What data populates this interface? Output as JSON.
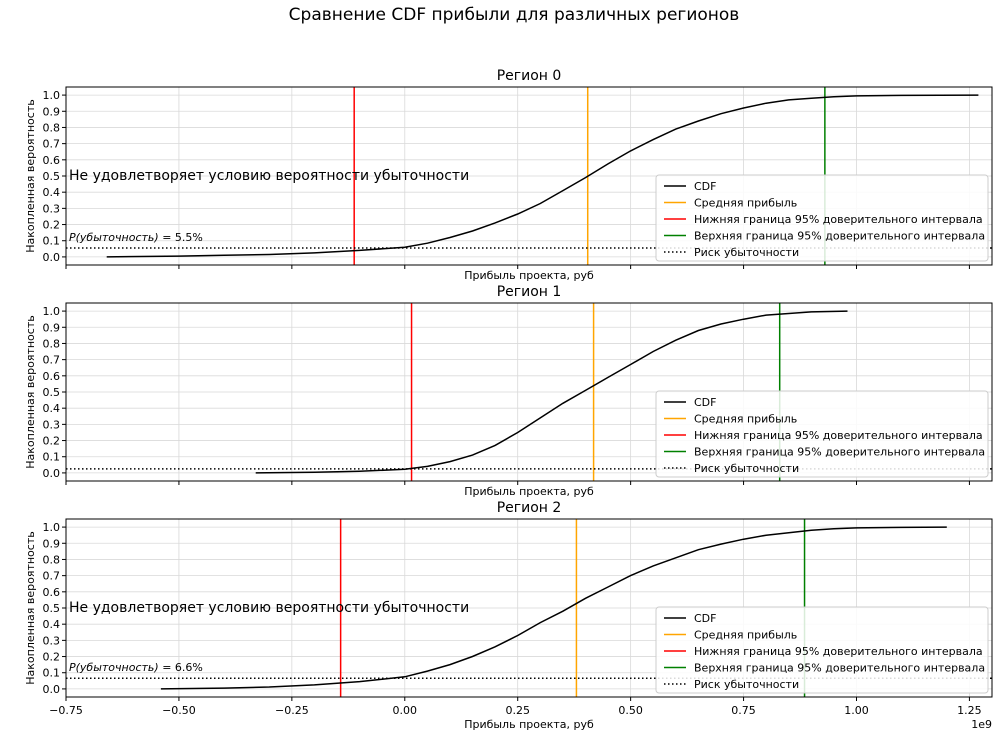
{
  "figure": {
    "title": "Сравнение CDF прибыли для различных регионов",
    "x_offset_text": "1e9"
  },
  "legend_labels": {
    "cdf": "CDF",
    "mean": "Средняя прибыль",
    "lower": "Нижняя граница 95% доверительного интервала",
    "upper": "Верхняя граница 95% доверительного интервала",
    "risk": "Риск убыточности"
  },
  "colors": {
    "cdf": "#000000",
    "mean": "#ffa500",
    "lower": "#ff0000",
    "upper": "#008000",
    "risk": "#000000",
    "grid": "#d9d9d9"
  },
  "chart_data": [
    {
      "type": "line",
      "title": "Регион 0",
      "xlabel": "Прибыль проекта, руб",
      "ylabel": "Накопленная вероятность",
      "xlim": [
        -0.75,
        1.3
      ],
      "ylim": [
        -0.05,
        1.05
      ],
      "x_ticks": [
        -0.75,
        -0.5,
        -0.25,
        0.0,
        0.25,
        0.5,
        0.75,
        1.0,
        1.25
      ],
      "x_tick_labels": [],
      "y_ticks": [
        0.0,
        0.1,
        0.2,
        0.3,
        0.4,
        0.5,
        0.6,
        0.7,
        0.8,
        0.9,
        1.0
      ],
      "y_tick_labels": [
        "0.0",
        "0.1",
        "0.2",
        "0.3",
        "0.4",
        "0.5",
        "0.6",
        "0.7",
        "0.8",
        "0.9",
        "1.0"
      ],
      "grid": true,
      "legend_position": "lower-right",
      "mean": 0.405,
      "lower_ci": -0.112,
      "upper_ci": 0.93,
      "risk": 0.055,
      "note": "Не удовлетворяет условию вероятности убыточности",
      "risk_prefix": "P(убыточность)",
      "risk_text": " = 5.5%",
      "cdf": {
        "x": [
          -0.66,
          -0.5,
          -0.4,
          -0.3,
          -0.2,
          -0.1,
          0.0,
          0.05,
          0.1,
          0.15,
          0.2,
          0.25,
          0.3,
          0.35,
          0.4,
          0.45,
          0.5,
          0.55,
          0.6,
          0.65,
          0.7,
          0.75,
          0.8,
          0.85,
          0.9,
          0.95,
          1.0,
          1.1,
          1.27
        ],
        "y": [
          0.0,
          0.005,
          0.01,
          0.015,
          0.025,
          0.04,
          0.06,
          0.085,
          0.12,
          0.16,
          0.21,
          0.265,
          0.33,
          0.41,
          0.49,
          0.575,
          0.655,
          0.725,
          0.79,
          0.84,
          0.885,
          0.92,
          0.95,
          0.97,
          0.98,
          0.99,
          0.995,
          0.998,
          1.0
        ]
      }
    },
    {
      "type": "line",
      "title": "Регион 1",
      "xlabel": "Прибыль проекта, руб",
      "ylabel": "Накопленная вероятность",
      "xlim": [
        -0.75,
        1.3
      ],
      "ylim": [
        -0.05,
        1.05
      ],
      "x_ticks": [
        -0.75,
        -0.5,
        -0.25,
        0.0,
        0.25,
        0.5,
        0.75,
        1.0,
        1.25
      ],
      "x_tick_labels": [],
      "y_ticks": [
        0.0,
        0.1,
        0.2,
        0.3,
        0.4,
        0.5,
        0.6,
        0.7,
        0.8,
        0.9,
        1.0
      ],
      "y_tick_labels": [
        "0.0",
        "0.1",
        "0.2",
        "0.3",
        "0.4",
        "0.5",
        "0.6",
        "0.7",
        "0.8",
        "0.9",
        "1.0"
      ],
      "grid": true,
      "legend_position": "lower-right",
      "mean": 0.418,
      "lower_ci": 0.015,
      "upper_ci": 0.83,
      "risk": 0.025,
      "note": "",
      "risk_prefix": "",
      "risk_text": "",
      "cdf": {
        "x": [
          -0.33,
          -0.2,
          -0.1,
          0.0,
          0.05,
          0.1,
          0.15,
          0.2,
          0.25,
          0.3,
          0.35,
          0.4,
          0.45,
          0.5,
          0.55,
          0.6,
          0.65,
          0.7,
          0.75,
          0.8,
          0.85,
          0.9,
          0.98
        ],
        "y": [
          0.0,
          0.004,
          0.01,
          0.022,
          0.04,
          0.07,
          0.11,
          0.17,
          0.25,
          0.34,
          0.43,
          0.51,
          0.59,
          0.67,
          0.75,
          0.82,
          0.88,
          0.92,
          0.95,
          0.975,
          0.985,
          0.995,
          1.0
        ]
      }
    },
    {
      "type": "line",
      "title": "Регион 2",
      "xlabel": "Прибыль проекта, руб",
      "ylabel": "Накопленная вероятность",
      "xlim": [
        -0.75,
        1.3
      ],
      "ylim": [
        -0.05,
        1.05
      ],
      "x_ticks": [
        -0.75,
        -0.5,
        -0.25,
        0.0,
        0.25,
        0.5,
        0.75,
        1.0,
        1.25
      ],
      "x_tick_labels": [
        "−0.75",
        "−0.50",
        "−0.25",
        "0.00",
        "0.25",
        "0.50",
        "0.75",
        "1.00",
        "1.25"
      ],
      "y_ticks": [
        0.0,
        0.1,
        0.2,
        0.3,
        0.4,
        0.5,
        0.6,
        0.7,
        0.8,
        0.9,
        1.0
      ],
      "y_tick_labels": [
        "0.0",
        "0.1",
        "0.2",
        "0.3",
        "0.4",
        "0.5",
        "0.6",
        "0.7",
        "0.8",
        "0.9",
        "1.0"
      ],
      "grid": true,
      "legend_position": "lower-right",
      "mean": 0.38,
      "lower_ci": -0.142,
      "upper_ci": 0.885,
      "risk": 0.066,
      "note": "Не удовлетворяет условию вероятности убыточности",
      "risk_prefix": "P(убыточность)",
      "risk_text": " = 6.6%",
      "cdf": {
        "x": [
          -0.54,
          -0.4,
          -0.3,
          -0.2,
          -0.1,
          0.0,
          0.05,
          0.1,
          0.15,
          0.2,
          0.25,
          0.3,
          0.35,
          0.4,
          0.45,
          0.5,
          0.55,
          0.6,
          0.65,
          0.7,
          0.75,
          0.8,
          0.85,
          0.9,
          0.95,
          1.0,
          1.1,
          1.2
        ],
        "y": [
          0.0,
          0.005,
          0.012,
          0.025,
          0.045,
          0.075,
          0.11,
          0.15,
          0.2,
          0.26,
          0.33,
          0.41,
          0.48,
          0.56,
          0.63,
          0.7,
          0.76,
          0.81,
          0.86,
          0.895,
          0.925,
          0.95,
          0.965,
          0.98,
          0.99,
          0.995,
          0.998,
          1.0
        ]
      }
    }
  ]
}
